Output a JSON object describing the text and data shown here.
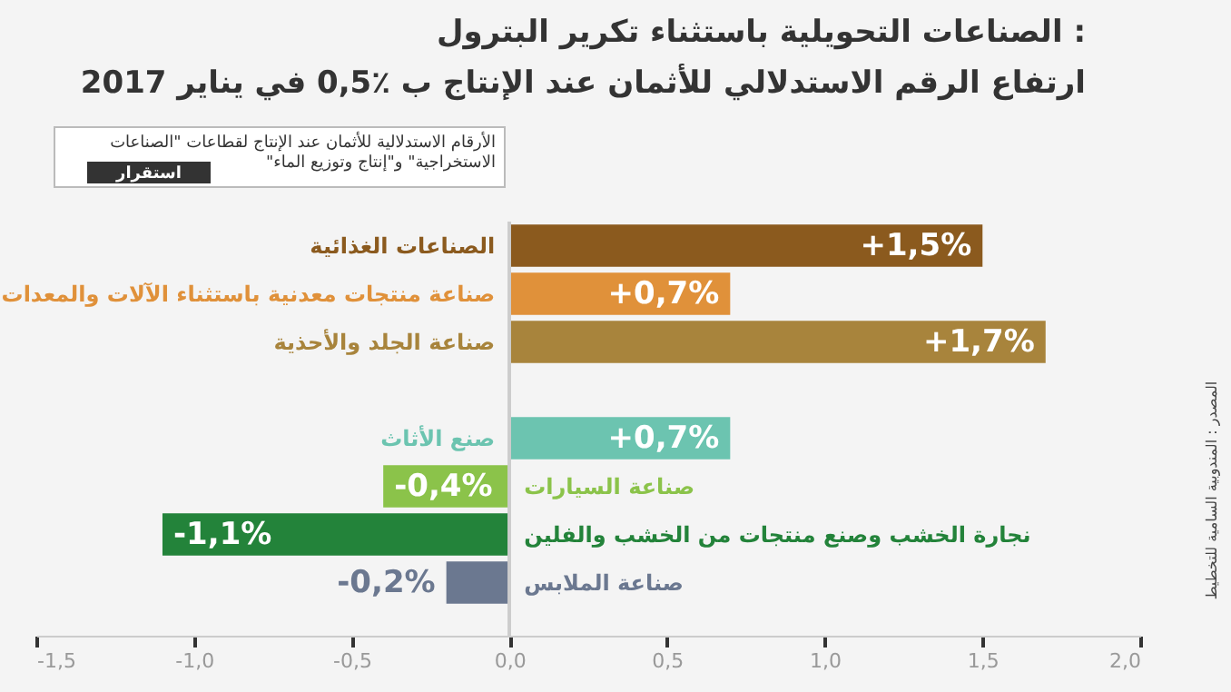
{
  "chart_data": {
    "type": "bar",
    "orientation": "horizontal",
    "title": "الصناعات التحويلية باستثناء تكرير البترول :",
    "subtitle": "ارتفاع الرقم الاستدلالي للأثمان عند الإنتاج ب ٪0,5 في يناير 2017",
    "categories": [
      "الصناعات الغذائية",
      "صناعة منتجات معدنية باستثناء الآلات والمعدات",
      "صناعة الجلد والأحذية",
      null,
      "صنع الأثاث",
      "صناعة السيارات",
      "نجارة الخشب وصنع منتجات من الخشب والفلين",
      "صناعة الملابس"
    ],
    "values": [
      1.5,
      0.7,
      1.7,
      null,
      0.7,
      -0.4,
      -1.1,
      -0.2
    ],
    "value_labels": [
      "+1,5%",
      "+0,7%",
      "+1,7%",
      null,
      "+0,7%",
      "-0,4%",
      "-1,1%",
      "-0,2%"
    ],
    "colors": [
      "#8b5a1e",
      "#e0913a",
      "#a8843c",
      "#ffffff",
      "#6cc4b0",
      "#8bc34a",
      "#23833a",
      "#6b7890"
    ],
    "xlim": [
      -1.5,
      2.0
    ],
    "xticks": [
      {
        "value": -1.5,
        "label": "-1,5"
      },
      {
        "value": -1.0,
        "label": "-1,0"
      },
      {
        "value": -0.5,
        "label": "-0,5"
      },
      {
        "value": 0.0,
        "label": "0,0"
      },
      {
        "value": 0.5,
        "label": "0,5"
      },
      {
        "value": 1.0,
        "label": "1,0"
      },
      {
        "value": 1.5,
        "label": "1,5"
      },
      {
        "value": 2.0,
        "label": "2,0"
      }
    ],
    "grid": false,
    "annotations": [
      "الأرقام الاستدلالية للأثمان عند الإنتاج لقطاعات \"الصناعات\n\"الاستخراجية\" و\"إنتاج وتوزيع الماء",
      "استقرار",
      "المصدر : المندوبية السامية للتخطيط"
    ]
  }
}
